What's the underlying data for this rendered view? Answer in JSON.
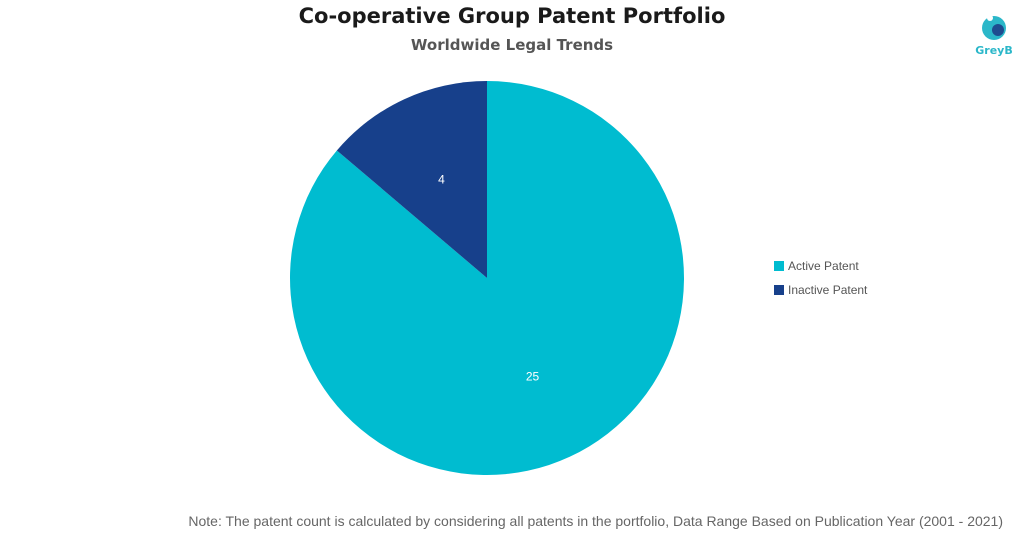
{
  "header": {
    "title": "Co-operative Group Patent Portfolio",
    "subtitle": "Worldwide Legal Trends"
  },
  "logo": {
    "text": "GreyB",
    "icon": "greyb-logo-icon",
    "color": "#2bb7c9"
  },
  "chart_data": {
    "type": "pie",
    "title": "Co-operative Group Patent Portfolio",
    "subtitle": "Worldwide Legal Trends",
    "slices": [
      {
        "label": "Active Patent",
        "value": 25,
        "color": "#00bcd0"
      },
      {
        "label": "Inactive Patent",
        "value": 4,
        "color": "#17408b"
      }
    ],
    "legend_position": "right",
    "data_labels": true
  },
  "legend": {
    "items": [
      {
        "label": "Active Patent",
        "color": "#00bcd0"
      },
      {
        "label": "Inactive Patent",
        "color": "#17408b"
      }
    ]
  },
  "footer": {
    "note": "Note: The patent count is calculated by considering all patents in the portfolio, Data Range Based on Publication Year (2001 - 2021)"
  }
}
